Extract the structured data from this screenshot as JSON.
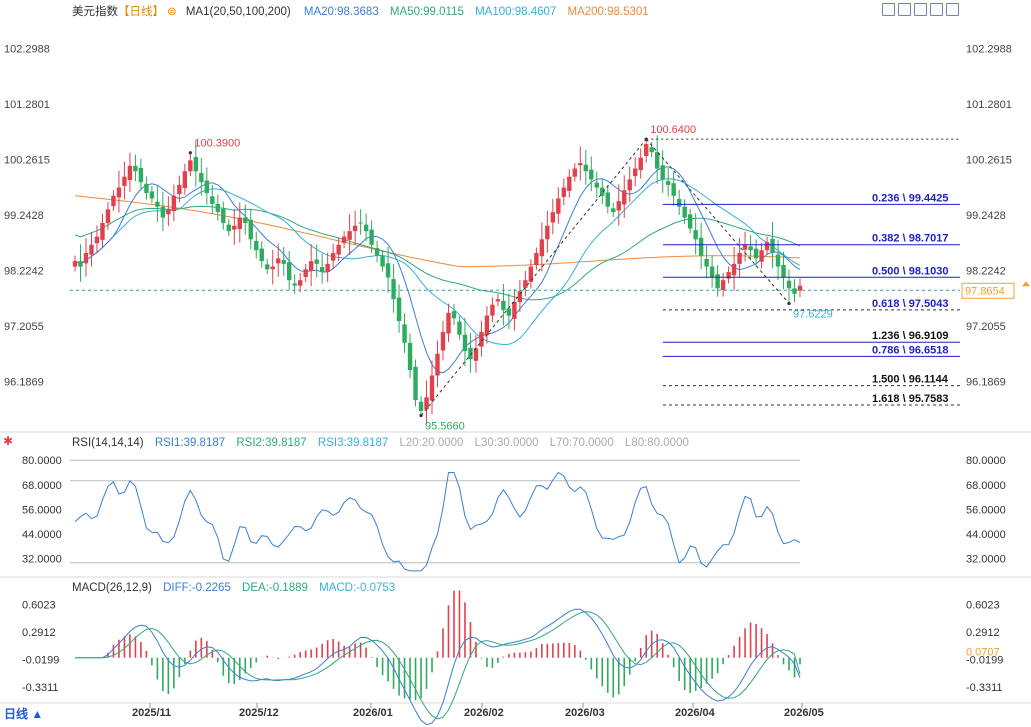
{
  "main_header": {
    "title": "美元指数",
    "period": "【日线】",
    "ma_label": "MA1(20,50,100,200)",
    "ma20": "MA20:98.3683",
    "ma50": "MA50:99.0115",
    "ma100": "MA100:98.4607",
    "ma200": "MA200:98.5301"
  },
  "rsi_header": {
    "label": "RSI(14,14,14)",
    "rsi1": "RSI1:39.8187",
    "rsi2": "RSI2:39.8187",
    "rsi3": "RSI3:39.8187",
    "l20": "L20:20.0000",
    "l30": "L30:30.0000",
    "l70": "L70:70.0000",
    "l80": "L80:80.0000"
  },
  "macd_header": {
    "label": "MACD(26,12,9)",
    "diff": "DIFF:-0.2265",
    "dea": "DEA:-0.1889",
    "macd": "MACD:-0.0753"
  },
  "period_button": "日线 ▲",
  "colors": {
    "up": "#e0414d",
    "down": "#2dab5e",
    "ma20": "#3a7fd5",
    "ma50": "#30a880",
    "ma100": "#35b0d8",
    "ma200": "#ee8a3c",
    "fib": "#1f1fc8",
    "price_tag": "#f0a030"
  },
  "icons": [
    "chart-settings-icon",
    "zoom-in-icon",
    "zoom-out-icon",
    "maximize-icon",
    "close-icon"
  ],
  "chart_data": [
    {
      "type": "candlestick",
      "title": "美元指数 【日线】",
      "ylim": [
        95.3,
        102.9
      ],
      "y_ticks": [
        "102.2988",
        "101.2801",
        "100.2615",
        "99.2428",
        "98.2242",
        "97.2055",
        "96.1869"
      ],
      "x_ticks": [
        "2025/11",
        "2025/12",
        "2026/01",
        "2026/02",
        "2026/03",
        "2026/04",
        "2026/05"
      ],
      "current_price": "97.8654",
      "annotations": [
        {
          "label": "100.3900",
          "value": 100.39
        },
        {
          "label": "100.6400",
          "value": 100.64
        },
        {
          "label": "95.5660",
          "value": 95.566
        },
        {
          "label": "97.6229",
          "value": 97.6229
        }
      ],
      "fibonacci": [
        {
          "label": "0.236 \\ 99.4425",
          "level": 0.236,
          "value": 99.4425
        },
        {
          "label": "0.382 \\ 98.7017",
          "level": 0.382,
          "value": 98.7017
        },
        {
          "label": "0.500 \\ 98.1030",
          "level": 0.5,
          "value": 98.103
        },
        {
          "label": "0.618 \\ 97.5043",
          "level": 0.618,
          "value": 97.5043
        },
        {
          "label": "0.786 \\ 96.6518",
          "level": 0.786,
          "value": 96.6518
        },
        {
          "label": "1.236 \\ 96.9109",
          "level": 1.236,
          "value": 96.9109
        },
        {
          "label": "1.500 \\ 96.1144",
          "level": 1.5,
          "value": 96.1144
        },
        {
          "label": "1.618 \\ 95.7583",
          "level": 1.618,
          "value": 95.7583
        }
      ],
      "closes": [
        98.4,
        98.3,
        98.55,
        98.7,
        98.85,
        99.1,
        99.35,
        99.6,
        99.75,
        99.95,
        100.15,
        100.05,
        99.85,
        99.65,
        99.55,
        99.4,
        99.2,
        99.35,
        99.6,
        99.8,
        100.05,
        100.25,
        100.05,
        99.85,
        99.65,
        99.45,
        99.3,
        99.1,
        98.95,
        99.05,
        99.2,
        99.1,
        98.8,
        98.6,
        98.4,
        98.25,
        98.3,
        98.45,
        98.35,
        98.05,
        97.95,
        98.05,
        98.25,
        98.4,
        98.35,
        98.2,
        98.35,
        98.55,
        98.7,
        98.85,
        98.95,
        99.05,
        99.1,
        98.95,
        98.7,
        98.5,
        98.3,
        98.1,
        97.7,
        97.3,
        96.9,
        96.4,
        95.85,
        95.65,
        95.9,
        96.3,
        96.7,
        97.1,
        97.45,
        97.35,
        97.05,
        96.75,
        96.6,
        96.8,
        97.1,
        97.4,
        97.6,
        97.7,
        97.5,
        97.4,
        97.65,
        97.85,
        98.05,
        98.3,
        98.55,
        98.8,
        99.05,
        99.3,
        99.55,
        99.75,
        99.95,
        100.1,
        100.2,
        100.05,
        99.9,
        99.75,
        99.6,
        99.4,
        99.3,
        99.5,
        99.7,
        99.9,
        100.1,
        100.3,
        100.55,
        100.4,
        100.1,
        99.9,
        99.8,
        99.6,
        99.4,
        99.2,
        99.0,
        98.8,
        98.5,
        98.3,
        98.1,
        97.9,
        98.05,
        98.2,
        98.35,
        98.55,
        98.7,
        98.6,
        98.45,
        98.6,
        98.75,
        98.55,
        98.3,
        98.1,
        97.9,
        97.8,
        97.95
      ]
    },
    {
      "type": "line",
      "title": "RSI(14,14,14)",
      "ylim": [
        24,
        84
      ],
      "y_ticks": [
        "80.0000",
        "68.0000",
        "56.0000",
        "44.0000",
        "32.0000"
      ],
      "levels": [
        20,
        30,
        70,
        80
      ],
      "series": [
        {
          "name": "RSI1",
          "last": 39.8187
        }
      ]
    },
    {
      "type": "line",
      "title": "MACD(26,12,9)",
      "ylim": [
        -0.48,
        0.7
      ],
      "y_ticks": [
        "0.6023",
        "0.2912",
        "-0.0199",
        "-0.3311"
      ],
      "current_value": "0.0707",
      "series": [
        {
          "name": "DIFF",
          "last": -0.2265
        },
        {
          "name": "DEA",
          "last": -0.1889
        },
        {
          "name": "MACD",
          "last": -0.0753
        }
      ]
    }
  ]
}
